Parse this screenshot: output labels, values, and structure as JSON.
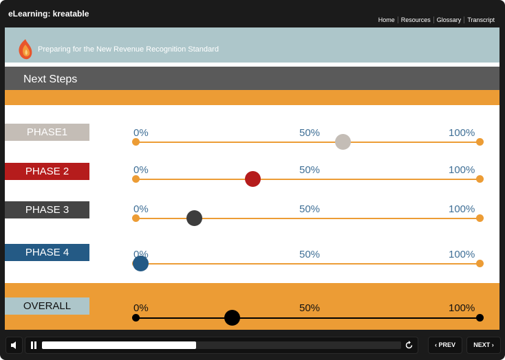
{
  "window": {
    "title": "eLearning: kreatable",
    "nav": [
      "Home",
      "Resources",
      "Glossary",
      "Transcript"
    ]
  },
  "course": {
    "title": "Preparing for the New Revenue Recognition Standard"
  },
  "slide": {
    "heading": "Next Steps"
  },
  "scale": {
    "min": "0%",
    "mid": "50%",
    "max": "100%"
  },
  "phases": [
    {
      "label": "PHASE1",
      "color": "#c4bdb6",
      "label_text_color": "#ffffff",
      "knob_color": "#c4bdb6",
      "value": 0.6
    },
    {
      "label": "PHASE 2",
      "color": "#b51c1c",
      "label_text_color": "#ffffff",
      "knob_color": "#b51c1c",
      "value": 0.34
    },
    {
      "label": "PHASE 3",
      "color": "#444444",
      "label_text_color": "#ffffff",
      "knob_color": "#3d3d3d",
      "value": 0.17
    },
    {
      "label": "PHASE 4",
      "color": "#245a85",
      "label_text_color": "#ffffff",
      "knob_color": "#245a85",
      "value": 0.0
    },
    {
      "label": "OVERALL",
      "color": "#adc6ca",
      "label_text_color": "#111111",
      "knob_color": "#000000",
      "value": 0.28
    }
  ],
  "player": {
    "progress": 0.43,
    "prev": "PREV",
    "next": "NEXT"
  }
}
